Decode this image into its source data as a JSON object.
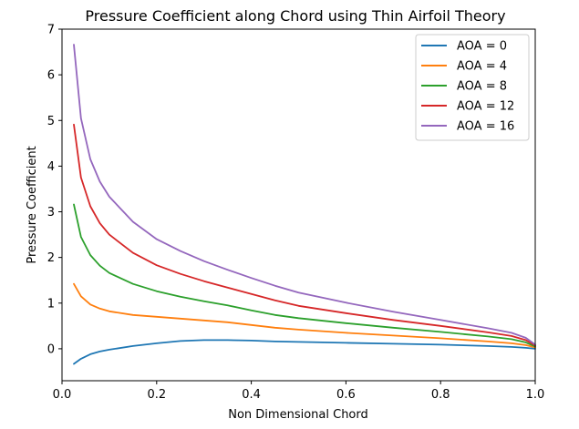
{
  "chart_data": {
    "type": "line",
    "title": "Pressure Coefficient along Chord using Thin Airfoil Theory",
    "xlabel": "Non Dimensional Chord",
    "ylabel": "Pressure Coefficient",
    "xlim": [
      0.0,
      1.0
    ],
    "ylim": [
      -0.7,
      7.0
    ],
    "xticks": [
      "0.0",
      "0.2",
      "0.4",
      "0.6",
      "0.8",
      "1.0"
    ],
    "yticks": [
      "0",
      "1",
      "2",
      "3",
      "4",
      "5",
      "6",
      "7"
    ],
    "grid": false,
    "legend_position": "top-right",
    "x": [
      0.025,
      0.04,
      0.06,
      0.08,
      0.1,
      0.15,
      0.2,
      0.25,
      0.3,
      0.35,
      0.4,
      0.45,
      0.5,
      0.6,
      0.7,
      0.8,
      0.9,
      0.95,
      0.98,
      1.0
    ],
    "series": [
      {
        "name": "AOA = 0",
        "color": "#1f77b4",
        "values": [
          -0.33,
          -0.22,
          -0.12,
          -0.06,
          -0.02,
          0.06,
          0.12,
          0.17,
          0.19,
          0.19,
          0.18,
          0.16,
          0.15,
          0.13,
          0.11,
          0.09,
          0.06,
          0.04,
          0.02,
          0.0
        ]
      },
      {
        "name": "AOA = 4",
        "color": "#ff7f0e",
        "values": [
          1.42,
          1.15,
          0.97,
          0.88,
          0.82,
          0.74,
          0.7,
          0.66,
          0.62,
          0.58,
          0.52,
          0.46,
          0.42,
          0.35,
          0.29,
          0.23,
          0.16,
          0.12,
          0.08,
          0.03
        ]
      },
      {
        "name": "AOA = 8",
        "color": "#2ca02c",
        "values": [
          3.16,
          2.45,
          2.05,
          1.82,
          1.66,
          1.42,
          1.26,
          1.14,
          1.04,
          0.95,
          0.84,
          0.74,
          0.67,
          0.56,
          0.46,
          0.37,
          0.27,
          0.21,
          0.14,
          0.05
        ]
      },
      {
        "name": "AOA = 12",
        "color": "#d62728",
        "values": [
          4.91,
          3.75,
          3.12,
          2.75,
          2.5,
          2.1,
          1.83,
          1.64,
          1.48,
          1.34,
          1.2,
          1.06,
          0.94,
          0.78,
          0.63,
          0.5,
          0.36,
          0.28,
          0.19,
          0.07
        ]
      },
      {
        "name": "AOA = 16",
        "color": "#9467bd",
        "values": [
          6.66,
          5.05,
          4.15,
          3.66,
          3.33,
          2.78,
          2.4,
          2.14,
          1.92,
          1.73,
          1.55,
          1.38,
          1.23,
          1.01,
          0.81,
          0.63,
          0.45,
          0.35,
          0.24,
          0.09
        ]
      }
    ]
  }
}
